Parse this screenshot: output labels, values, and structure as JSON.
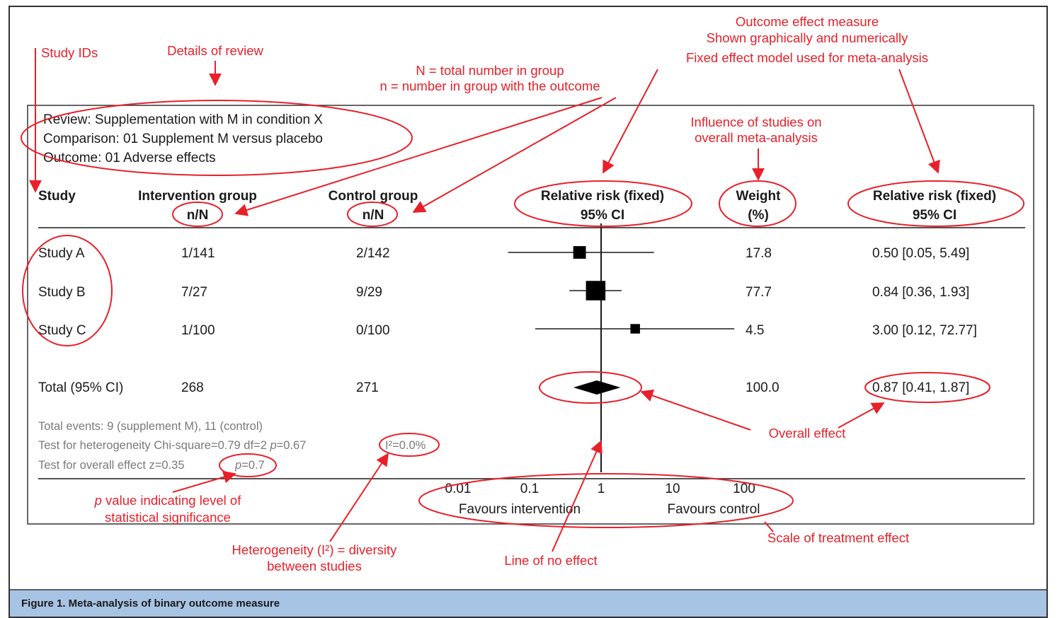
{
  "review": {
    "title": "Review: Supplementation with M in condition X",
    "comparison": "Comparison: 01 Supplement M versus placebo",
    "outcome": "Outcome: 01 Adverse effects"
  },
  "columns": {
    "study": "Study",
    "intervention": "Intervention group",
    "intervention_sub": "n/N",
    "control": "Control group",
    "control_sub": "n/N",
    "rr_plot": "Relative risk (fixed)",
    "rr_plot_sub": "95% CI",
    "weight": "Weight",
    "weight_sub": "(%)",
    "rr_text": "Relative risk (fixed)",
    "rr_text_sub": "95% CI"
  },
  "studies": [
    {
      "name": "Study A",
      "intervention": "1/141",
      "control": "2/142",
      "weight": "17.8",
      "rr_text": "0.50 [0.05, 5.49]",
      "rr": 0.5,
      "lo": 0.05,
      "hi": 5.49
    },
    {
      "name": "Study B",
      "intervention": "7/27",
      "control": "9/29",
      "weight": "77.7",
      "rr_text": "0.84 [0.36, 1.93]",
      "rr": 0.84,
      "lo": 0.36,
      "hi": 1.93
    },
    {
      "name": "Study C",
      "intervention": "1/100",
      "control": "0/100",
      "weight": "4.5",
      "rr_text": "3.00 [0.12, 72.77]",
      "rr": 3.0,
      "lo": 0.12,
      "hi": 72.77
    }
  ],
  "total": {
    "name": "Total (95% CI)",
    "intervention": "268",
    "control": "271",
    "weight": "100.0",
    "rr_text": "0.87 [0.41, 1.87]",
    "rr": 0.87,
    "lo": 0.41,
    "hi": 1.87
  },
  "stats": {
    "events": "Total events: 9 (supplement M), 11 (control)",
    "heterogeneity_prefix": "Test for heterogeneity Chi-square=0.79 df=2 ",
    "heterogeneity_p_label": "p",
    "heterogeneity_p_value": "=0.67",
    "i2": "I²=0.0%",
    "overall_prefix": "Test for overall effect z=0.35",
    "overall_p_label": "p",
    "overall_p_value": "=0.7"
  },
  "axis": {
    "ticks": [
      {
        "value": 0.01,
        "label": "0.01"
      },
      {
        "value": 0.1,
        "label": "0.1"
      },
      {
        "value": 1,
        "label": "1"
      },
      {
        "value": 10,
        "label": "10"
      },
      {
        "value": 100,
        "label": "100"
      }
    ],
    "favours_left": "Favours intervention",
    "favours_right": "Favours control",
    "scale": "log"
  },
  "annotations": {
    "study_ids": "Study IDs",
    "details_of_review": "Details of review",
    "n_total": "N = total number in group",
    "n_outcome": "n = number in group with the outcome",
    "outcome_effect_1": "Outcome effect measure",
    "outcome_effect_2": "Shown graphically and numerically",
    "outcome_effect_3": "Fixed effect model used for meta-analysis",
    "influence_1": "Influence of studies on",
    "influence_2": "overall meta-analysis",
    "overall_effect": "Overall effect",
    "p_value_1_italic": "p",
    "p_value_1_rest": " value indicating level of",
    "p_value_2": "statistical significance",
    "heterogeneity_1": "Heterogeneity (I²) = diversity",
    "heterogeneity_2": "between studies",
    "line_no_effect": "Line of no effect",
    "scale_effect": "Scale of treatment effect"
  },
  "caption": "Figure 1. Meta-analysis of binary outcome measure",
  "colors": {
    "annotation": "#e8202a",
    "caption_bar": "#a8c4e4",
    "text": "#1a1a1a",
    "stats_text": "#7a7a7a"
  }
}
